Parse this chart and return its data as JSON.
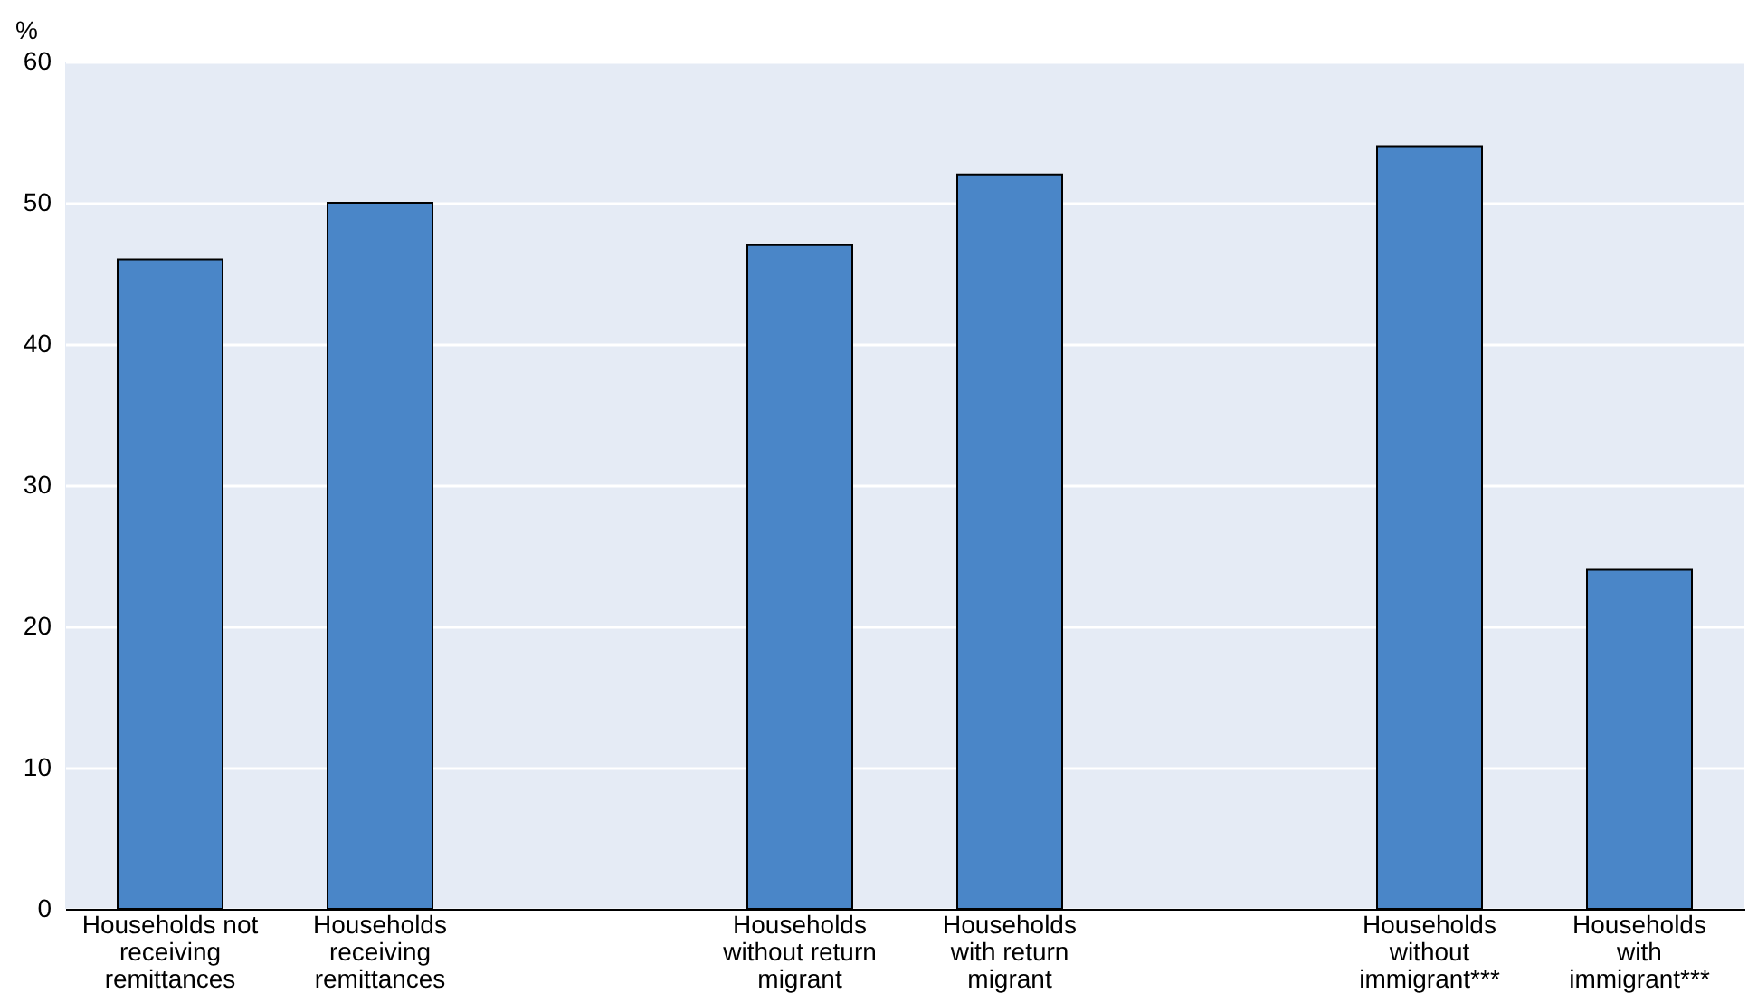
{
  "chart_data": {
    "type": "bar",
    "ylabel": "%",
    "categories": [
      "Households not receiving remittances",
      "Households receiving remittances",
      null,
      "Households without return migrant",
      "Households with return migrant",
      null,
      "Households without immigrant***",
      "Households with immigrant***"
    ],
    "values": [
      46,
      50,
      null,
      47,
      52,
      null,
      54,
      24
    ],
    "color": "#4a86c8",
    "ylim": [
      0,
      60
    ],
    "yticks": [
      0,
      10,
      20,
      30,
      40,
      50,
      60
    ],
    "grid": "y"
  }
}
